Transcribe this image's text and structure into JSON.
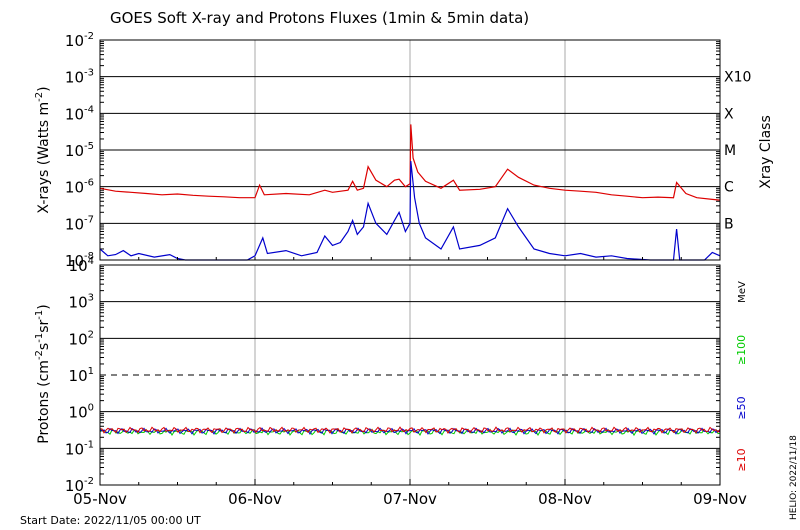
{
  "chart_data": [
    {
      "type": "line",
      "title": "GOES Soft X-ray and Protons Fluxes   (1min & 5min data)",
      "ylabel_base": "X-rays (Watts m",
      "ylabel_sup": "-2",
      "ylabel_end": ")",
      "yscale": "log",
      "ylim": [
        1e-08,
        0.01
      ],
      "ytick_exponents": [
        "-8",
        "-7",
        "-6",
        "-5",
        "-4",
        "-3",
        "-2"
      ],
      "class_axis_label": "Xray Class",
      "class_labels": [
        {
          "label": "B",
          "level": 1e-07
        },
        {
          "label": "C",
          "level": 1e-06
        },
        {
          "label": "M",
          "level": 1e-05
        },
        {
          "label": "X",
          "level": 0.0001
        },
        {
          "label": "X10",
          "level": 0.001
        }
      ],
      "x_range_days": [
        0,
        4
      ],
      "series": [
        {
          "color": "#dd0000",
          "points": [
            [
              0.0,
              9e-07
            ],
            [
              0.1,
              7.5e-07
            ],
            [
              0.2,
              7e-07
            ],
            [
              0.3,
              6.5e-07
            ],
            [
              0.4,
              6e-07
            ],
            [
              0.5,
              6.3e-07
            ],
            [
              0.6,
              5.8e-07
            ],
            [
              0.7,
              5.5e-07
            ],
            [
              0.8,
              5.3e-07
            ],
            [
              0.9,
              5e-07
            ],
            [
              1.0,
              5e-07
            ],
            [
              1.03,
              1.1e-06
            ],
            [
              1.06,
              6e-07
            ],
            [
              1.2,
              6.5e-07
            ],
            [
              1.35,
              6e-07
            ],
            [
              1.45,
              8e-07
            ],
            [
              1.5,
              7e-07
            ],
            [
              1.6,
              8e-07
            ],
            [
              1.63,
              1.4e-06
            ],
            [
              1.66,
              8e-07
            ],
            [
              1.7,
              9e-07
            ],
            [
              1.73,
              3.5e-06
            ],
            [
              1.78,
              1.5e-06
            ],
            [
              1.85,
              1e-06
            ],
            [
              1.9,
              1.5e-06
            ],
            [
              1.93,
              1.6e-06
            ],
            [
              1.97,
              1e-06
            ],
            [
              2.0,
              1.2e-06
            ],
            [
              2.005,
              5e-05
            ],
            [
              2.02,
              6e-06
            ],
            [
              2.05,
              2.5e-06
            ],
            [
              2.1,
              1.4e-06
            ],
            [
              2.2,
              9e-07
            ],
            [
              2.28,
              1.5e-06
            ],
            [
              2.32,
              8e-07
            ],
            [
              2.45,
              8.5e-07
            ],
            [
              2.55,
              1e-06
            ],
            [
              2.63,
              3e-06
            ],
            [
              2.7,
              1.8e-06
            ],
            [
              2.8,
              1.1e-06
            ],
            [
              2.9,
              9e-07
            ],
            [
              3.0,
              8e-07
            ],
            [
              3.1,
              7.5e-07
            ],
            [
              3.2,
              7e-07
            ],
            [
              3.3,
              6e-07
            ],
            [
              3.4,
              5.5e-07
            ],
            [
              3.5,
              5e-07
            ],
            [
              3.6,
              5.2e-07
            ],
            [
              3.7,
              5e-07
            ],
            [
              3.72,
              1.3e-06
            ],
            [
              3.78,
              6.5e-07
            ],
            [
              3.85,
              5e-07
            ],
            [
              3.95,
              4.5e-07
            ],
            [
              4.0,
              4.3e-07
            ]
          ]
        },
        {
          "color": "#0000cc",
          "points": [
            [
              0.0,
              2e-08
            ],
            [
              0.05,
              1.3e-08
            ],
            [
              0.1,
              1.4e-08
            ],
            [
              0.15,
              1.8e-08
            ],
            [
              0.2,
              1.3e-08
            ],
            [
              0.25,
              1.5e-08
            ],
            [
              0.35,
              1.2e-08
            ],
            [
              0.45,
              1.4e-08
            ],
            [
              0.5,
              1.1e-08
            ],
            [
              0.55,
              1e-08
            ],
            [
              0.95,
              1e-08
            ],
            [
              1.0,
              1.3e-08
            ],
            [
              1.05,
              4e-08
            ],
            [
              1.08,
              1.5e-08
            ],
            [
              1.2,
              1.8e-08
            ],
            [
              1.3,
              1.3e-08
            ],
            [
              1.4,
              1.6e-08
            ],
            [
              1.45,
              4.5e-08
            ],
            [
              1.5,
              2.5e-08
            ],
            [
              1.55,
              3e-08
            ],
            [
              1.6,
              6e-08
            ],
            [
              1.63,
              1.2e-07
            ],
            [
              1.66,
              5e-08
            ],
            [
              1.7,
              8e-08
            ],
            [
              1.73,
              3.5e-07
            ],
            [
              1.78,
              1e-07
            ],
            [
              1.85,
              5e-08
            ],
            [
              1.9,
              1.2e-07
            ],
            [
              1.93,
              2e-07
            ],
            [
              1.97,
              6e-08
            ],
            [
              2.0,
              1e-07
            ],
            [
              2.005,
              5e-06
            ],
            [
              2.03,
              5e-07
            ],
            [
              2.06,
              1e-07
            ],
            [
              2.1,
              4e-08
            ],
            [
              2.2,
              2e-08
            ],
            [
              2.28,
              8e-08
            ],
            [
              2.32,
              2e-08
            ],
            [
              2.45,
              2.5e-08
            ],
            [
              2.55,
              4e-08
            ],
            [
              2.63,
              2.5e-07
            ],
            [
              2.7,
              8e-08
            ],
            [
              2.8,
              2e-08
            ],
            [
              2.9,
              1.5e-08
            ],
            [
              3.0,
              1.3e-08
            ],
            [
              3.1,
              1.5e-08
            ],
            [
              3.2,
              1.2e-08
            ],
            [
              3.3,
              1.3e-08
            ],
            [
              3.4,
              1.1e-08
            ],
            [
              3.55,
              1e-08
            ],
            [
              3.7,
              1e-08
            ],
            [
              3.72,
              7e-08
            ],
            [
              3.74,
              1e-08
            ],
            [
              3.9,
              1e-08
            ],
            [
              3.95,
              1.6e-08
            ],
            [
              4.0,
              1.3e-08
            ]
          ]
        }
      ]
    },
    {
      "type": "line",
      "ylabel_base": "Protons (cm",
      "ylabel_sup1": "-2",
      "ylabel_mid1": "s",
      "ylabel_sup2": "-1",
      "ylabel_mid2": "sr",
      "ylabel_sup3": "-1",
      "ylabel_end": ")",
      "yscale": "log",
      "ylim": [
        0.01,
        10000
      ],
      "ytick_exponents": [
        "-2",
        "-1",
        "0",
        "1",
        "2",
        "3",
        "4"
      ],
      "threshold_level": 10,
      "unit_label": "MeV",
      "x_range_days": [
        0,
        4
      ],
      "xticks": [
        "05-Nov",
        "06-Nov",
        "07-Nov",
        "08-Nov",
        "09-Nov"
      ],
      "series": [
        {
          "name": "≥100",
          "color": "#00cc00",
          "level": 0.28
        },
        {
          "name": "≥50",
          "color": "#0000cc",
          "level": 0.3
        },
        {
          "name": "≥10",
          "color": "#dd0000",
          "level": 0.32
        }
      ]
    }
  ],
  "footer": {
    "start_date": "Start Date: 2022/11/05 00:00 UT",
    "credit": "HELIO: 2022/11/18"
  }
}
